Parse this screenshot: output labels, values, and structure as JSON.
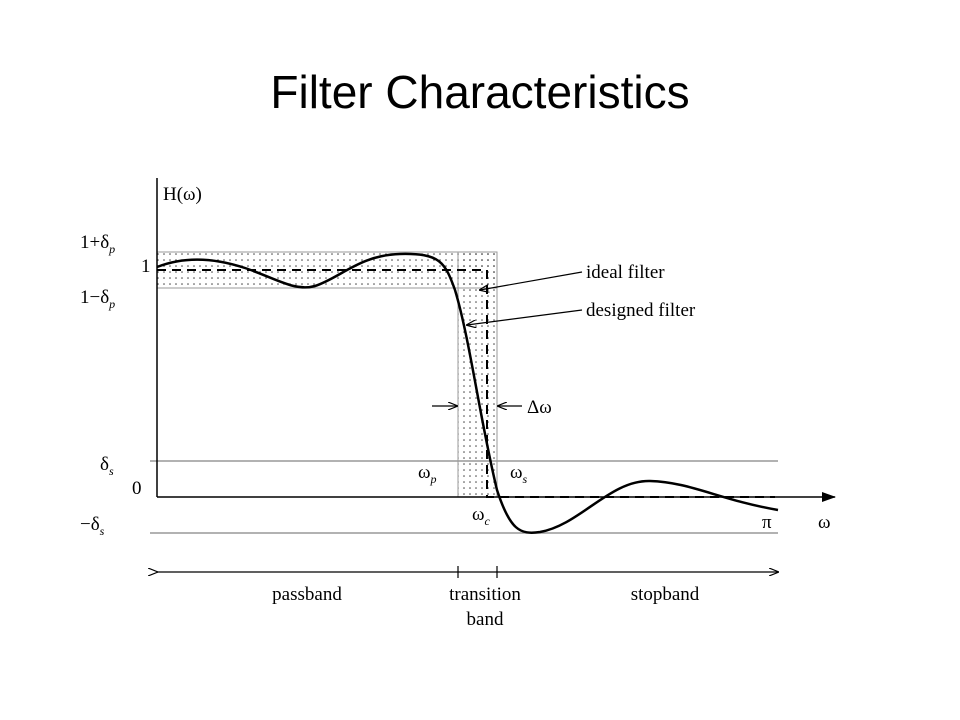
{
  "header": {
    "title": "Filter Characteristics"
  },
  "diagram": {
    "y_axis_label": "H(ω)",
    "x_axis_label": "ω",
    "levels": [
      {
        "main": "1+δ",
        "sub": "p"
      },
      {
        "main": "1",
        "sub": ""
      },
      {
        "main": "1−δ",
        "sub": "p"
      },
      {
        "main": "δ",
        "sub": "s"
      },
      {
        "main": "0",
        "sub": ""
      },
      {
        "main": "−δ",
        "sub": "s"
      }
    ],
    "frequencies": [
      {
        "main": "ω",
        "sub": "p"
      },
      {
        "main": "ω",
        "sub": "s"
      },
      {
        "main": "ω",
        "sub": "c"
      },
      {
        "main": "π",
        "sub": ""
      }
    ],
    "annotations": {
      "ideal": "ideal filter",
      "designed": "designed filter",
      "delta": "Δω"
    },
    "bands": {
      "passband": "passband",
      "transition": [
        "transition",
        "band"
      ],
      "stopband": "stopband"
    }
  }
}
